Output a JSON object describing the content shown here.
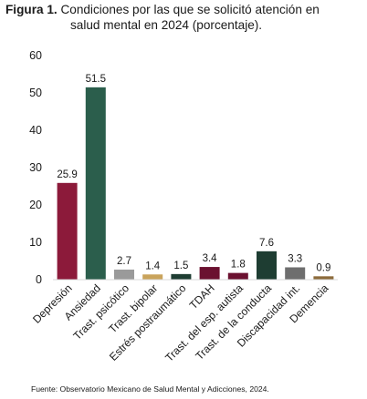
{
  "figure": {
    "label": "Figura 1.",
    "caption_line1": "Condiciones por las que se solicitó atención en",
    "caption_line2": "salud mental en 2024 (porcentaje)."
  },
  "source": "Fuente: Observatorio Mexicano de Salud Mental y Adicciones, 2024.",
  "chart_data": {
    "type": "bar",
    "title": "Condiciones por las que se solicitó atención en salud mental en 2024 (porcentaje).",
    "xlabel": "",
    "ylabel": "",
    "ylim": [
      0,
      60
    ],
    "yticks": [
      0,
      10,
      20,
      30,
      40,
      50,
      60
    ],
    "grid": false,
    "categories": [
      "Depresión",
      "Ansiedad",
      "Trast. psicótico",
      "Trast. bipolar",
      "Estrés postraumático",
      "TDAH",
      "Trast. del esp. autista",
      "Trast. de la conducta",
      "Discapacidad int.",
      "Demencia"
    ],
    "values": [
      25.9,
      51.5,
      2.7,
      1.4,
      1.5,
      3.4,
      1.8,
      7.6,
      3.3,
      0.9
    ],
    "value_labels": [
      "25.9",
      "51.5",
      "2.7",
      "1.4",
      "1.5",
      "3.4",
      "1.8",
      "7.6",
      "3.3",
      "0.9"
    ],
    "colors": [
      "#8c1a3a",
      "#2b5e4c",
      "#9a9a9a",
      "#c9a35b",
      "#1e3d32",
      "#6b1130",
      "#6b1130",
      "#1e3d32",
      "#6e6e6e",
      "#8c6b3a"
    ]
  }
}
